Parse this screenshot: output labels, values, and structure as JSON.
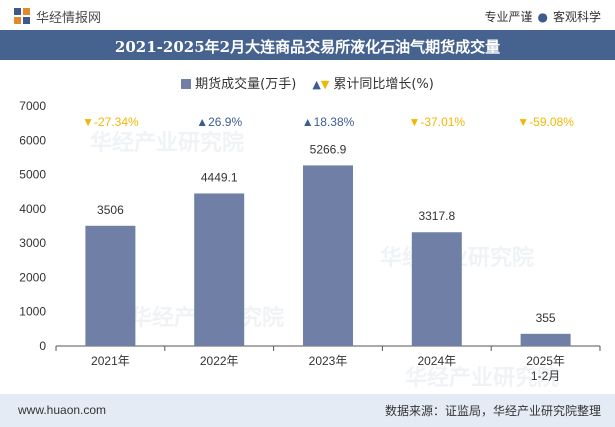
{
  "header": {
    "brand": "华经情报网",
    "slogan_left": "专业严谨",
    "slogan_right": "客观科学"
  },
  "footer": {
    "site": "www.huaon.com",
    "source": "数据来源：证监局，华经产业研究院整理"
  },
  "watermark": "华经产业研究院",
  "colors": {
    "bar": "#6f7fa6",
    "up": "#3d5d8e",
    "down": "#f2b705",
    "title_bg": "#46628f"
  },
  "chart_data": {
    "type": "bar",
    "title": "2021-2025年2月大连商品交易所液化石油气期货成交量",
    "categories": [
      "2021年",
      "2022年",
      "2023年",
      "2024年",
      "2025年\n1-2月"
    ],
    "series": [
      {
        "name": "期货成交量(万手)",
        "values": [
          3506,
          4449.1,
          5266.9,
          3317.8,
          355
        ]
      },
      {
        "name": "累计同比增长(%)",
        "values": [
          -27.34,
          26.9,
          18.38,
          -37.01,
          -59.08
        ]
      }
    ],
    "value_labels": [
      "3506",
      "4449.1",
      "5266.9",
      "3317.8",
      "355"
    ],
    "growth_labels": [
      "-27.34%",
      "26.9%",
      "18.38%",
      "-37.01%",
      "-59.08%"
    ],
    "y_ticks": [
      0,
      1000,
      2000,
      3000,
      4000,
      5000,
      6000,
      7000
    ],
    "ylim": [
      0,
      7000
    ],
    "legend": "top-center",
    "grid": false
  }
}
